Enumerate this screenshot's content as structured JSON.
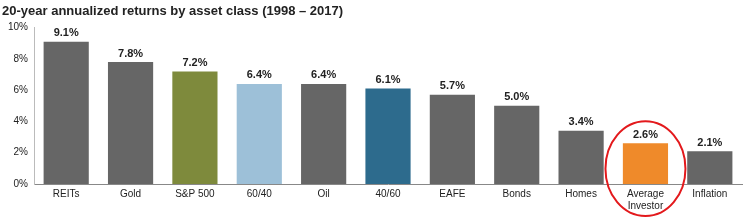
{
  "chart_data": {
    "type": "bar",
    "title": "20-year annualized returns by asset class (1998 – 2017)",
    "categories": [
      "REITs",
      "Gold",
      "S&P 500",
      "60/40",
      "Oil",
      "40/60",
      "EAFE",
      "Bonds",
      "Homes",
      "Average Investor",
      "Inflation"
    ],
    "values": [
      9.1,
      7.8,
      7.2,
      6.4,
      6.4,
      6.1,
      5.7,
      5.0,
      3.4,
      2.6,
      2.1
    ],
    "value_labels": [
      "9.1%",
      "7.8%",
      "7.2%",
      "6.4%",
      "6.4%",
      "6.1%",
      "5.7%",
      "5.0%",
      "3.4%",
      "2.6%",
      "2.1%"
    ],
    "colors": [
      "#666666",
      "#666666",
      "#7e8a3c",
      "#9dc0d8",
      "#666666",
      "#2d6b8d",
      "#666666",
      "#666666",
      "#666666",
      "#ef8a2a",
      "#666666"
    ],
    "ylim": [
      0,
      10
    ],
    "yticks": [
      {
        "value": 0,
        "label": "0%"
      },
      {
        "value": 2,
        "label": "2%"
      },
      {
        "value": 4,
        "label": "4%"
      },
      {
        "value": 6,
        "label": "6%"
      },
      {
        "value": 8,
        "label": "8%"
      },
      {
        "value": 10,
        "label": "10%"
      }
    ],
    "grid": false,
    "data_labels": true
  }
}
